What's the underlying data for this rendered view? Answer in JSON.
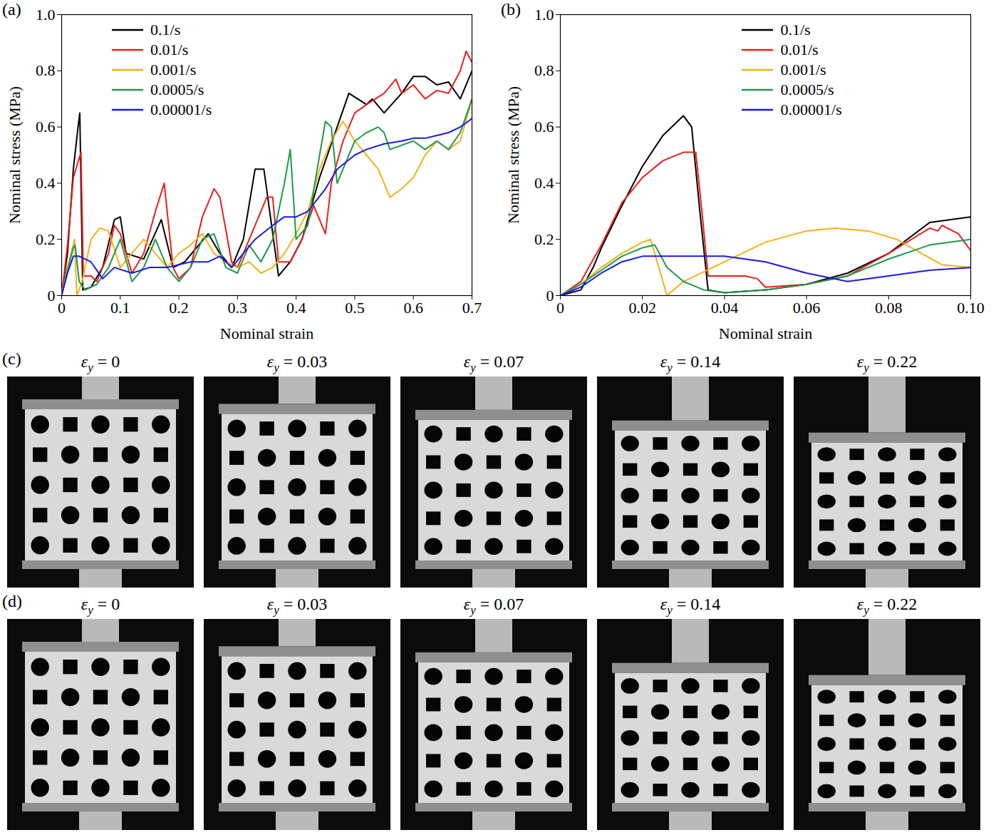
{
  "chart_data": [
    {
      "type": "line",
      "panel_label": "(a)",
      "x_label": "Nominal strain",
      "y_label": "Nominal stress (MPa)",
      "xlim": [
        0,
        0.7
      ],
      "xticks": [
        0,
        0.1,
        0.2,
        0.3,
        0.4,
        0.5,
        0.6,
        0.7
      ],
      "ylim": [
        0,
        1
      ],
      "yticks": [
        0,
        0.2,
        0.4,
        0.6,
        0.8,
        {
          "value": 1,
          "label": "1.0"
        }
      ],
      "legend": "top-left",
      "series": [
        {
          "name": "0.1/s",
          "color": "#000000",
          "x": [
            0,
            0.01,
            0.02,
            0.028,
            0.031,
            0.033,
            0.036,
            0.05,
            0.07,
            0.09,
            0.1,
            0.11,
            0.14,
            0.17,
            0.19,
            0.21,
            0.25,
            0.27,
            0.29,
            0.31,
            0.33,
            0.345,
            0.37,
            0.39,
            0.41,
            0.44,
            0.47,
            0.49,
            0.52,
            0.53,
            0.55,
            0.58,
            0.6,
            0.62,
            0.64,
            0.66,
            0.68,
            0.7
          ],
          "values": [
            0,
            0.15,
            0.45,
            0.6,
            0.65,
            0.4,
            0.02,
            0.03,
            0.1,
            0.27,
            0.28,
            0.15,
            0.13,
            0.27,
            0.1,
            0.12,
            0.22,
            0.15,
            0.1,
            0.2,
            0.45,
            0.45,
            0.07,
            0.12,
            0.2,
            0.42,
            0.6,
            0.72,
            0.68,
            0.7,
            0.65,
            0.72,
            0.78,
            0.78,
            0.75,
            0.76,
            0.7,
            0.8
          ]
        },
        {
          "name": "0.01/s",
          "color": "#e8201a",
          "x": [
            0,
            0.01,
            0.02,
            0.033,
            0.037,
            0.05,
            0.06,
            0.08,
            0.09,
            0.1,
            0.12,
            0.14,
            0.16,
            0.175,
            0.19,
            0.2,
            0.22,
            0.24,
            0.26,
            0.27,
            0.29,
            0.3,
            0.32,
            0.35,
            0.36,
            0.37,
            0.39,
            0.41,
            0.43,
            0.45,
            0.46,
            0.48,
            0.5,
            0.52,
            0.55,
            0.57,
            0.58,
            0.6,
            0.62,
            0.64,
            0.66,
            0.68,
            0.69,
            0.7
          ],
          "values": [
            0,
            0.18,
            0.42,
            0.51,
            0.07,
            0.07,
            0.05,
            0.15,
            0.25,
            0.22,
            0.08,
            0.15,
            0.3,
            0.4,
            0.1,
            0.06,
            0.1,
            0.28,
            0.38,
            0.35,
            0.12,
            0.1,
            0.2,
            0.35,
            0.35,
            0.12,
            0.12,
            0.2,
            0.32,
            0.22,
            0.4,
            0.55,
            0.65,
            0.68,
            0.72,
            0.77,
            0.72,
            0.75,
            0.7,
            0.73,
            0.72,
            0.8,
            0.87,
            0.83
          ]
        },
        {
          "name": "0.001/s",
          "color": "#f5b01a",
          "x": [
            0,
            0.01,
            0.022,
            0.026,
            0.035,
            0.05,
            0.065,
            0.08,
            0.1,
            0.12,
            0.14,
            0.16,
            0.18,
            0.2,
            0.22,
            0.24,
            0.26,
            0.28,
            0.3,
            0.32,
            0.34,
            0.36,
            0.38,
            0.4,
            0.42,
            0.44,
            0.46,
            0.48,
            0.5,
            0.52,
            0.54,
            0.56,
            0.58,
            0.6,
            0.62,
            0.64,
            0.66,
            0.68,
            0.7
          ],
          "values": [
            0,
            0.1,
            0.2,
            0,
            0.05,
            0.2,
            0.24,
            0.23,
            0.1,
            0.15,
            0.2,
            0.15,
            0.1,
            0.15,
            0.18,
            0.22,
            0.15,
            0.12,
            0.1,
            0.12,
            0.08,
            0.1,
            0.15,
            0.22,
            0.3,
            0.45,
            0.55,
            0.62,
            0.55,
            0.5,
            0.45,
            0.35,
            0.38,
            0.42,
            0.5,
            0.55,
            0.52,
            0.55,
            0.7
          ]
        },
        {
          "name": "0.0005/s",
          "color": "#1e9a4c",
          "x": [
            0,
            0.01,
            0.02,
            0.023,
            0.03,
            0.04,
            0.06,
            0.08,
            0.1,
            0.12,
            0.14,
            0.16,
            0.18,
            0.2,
            0.22,
            0.24,
            0.26,
            0.28,
            0.3,
            0.32,
            0.34,
            0.36,
            0.38,
            0.39,
            0.4,
            0.42,
            0.44,
            0.45,
            0.46,
            0.47,
            0.48,
            0.5,
            0.52,
            0.54,
            0.55,
            0.56,
            0.6,
            0.62,
            0.64,
            0.66,
            0.68,
            0.7
          ],
          "values": [
            0,
            0.09,
            0.17,
            0.18,
            0.05,
            0.02,
            0.04,
            0.1,
            0.2,
            0.05,
            0.1,
            0.2,
            0.1,
            0.05,
            0.1,
            0.2,
            0.22,
            0.1,
            0.08,
            0.18,
            0.12,
            0.2,
            0.4,
            0.52,
            0.2,
            0.25,
            0.5,
            0.62,
            0.6,
            0.4,
            0.45,
            0.55,
            0.58,
            0.6,
            0.58,
            0.52,
            0.55,
            0.52,
            0.55,
            0.52,
            0.58,
            0.7
          ]
        },
        {
          "name": "0.00001/s",
          "color": "#1a1ae6",
          "x": [
            0,
            0.01,
            0.02,
            0.03,
            0.05,
            0.07,
            0.09,
            0.12,
            0.15,
            0.18,
            0.22,
            0.25,
            0.27,
            0.29,
            0.31,
            0.33,
            0.36,
            0.38,
            0.4,
            0.42,
            0.45,
            0.47,
            0.5,
            0.52,
            0.55,
            0.58,
            0.6,
            0.62,
            0.64,
            0.66,
            0.68,
            0.7
          ],
          "values": [
            0,
            0.08,
            0.14,
            0.14,
            0.12,
            0.06,
            0.1,
            0.08,
            0.1,
            0.1,
            0.12,
            0.12,
            0.14,
            0.1,
            0.15,
            0.2,
            0.25,
            0.28,
            0.28,
            0.3,
            0.38,
            0.45,
            0.5,
            0.52,
            0.54,
            0.55,
            0.56,
            0.56,
            0.57,
            0.58,
            0.6,
            0.63
          ]
        }
      ]
    },
    {
      "type": "line",
      "panel_label": "(b)",
      "x_label": "Nominal strain",
      "y_label": "Nominal stress (MPa)",
      "xlim": [
        0,
        0.1
      ],
      "xticks": [
        0,
        0.02,
        0.04,
        0.06,
        0.08,
        {
          "value": 0.1,
          "label": "0.10"
        }
      ],
      "ylim": [
        0,
        1
      ],
      "yticks": [
        0,
        0.2,
        0.4,
        0.6,
        0.8,
        {
          "value": 1,
          "label": "1.0"
        }
      ],
      "legend": "top",
      "series": [
        {
          "name": "0.1/s",
          "color": "#000000",
          "x": [
            0,
            0.005,
            0.008,
            0.01,
            0.015,
            0.02,
            0.025,
            0.03,
            0.032,
            0.034,
            0.036,
            0.04,
            0.05,
            0.06,
            0.07,
            0.08,
            0.09,
            0.1
          ],
          "values": [
            0,
            0.02,
            0.1,
            0.17,
            0.32,
            0.46,
            0.57,
            0.64,
            0.6,
            0.3,
            0.02,
            0.01,
            0.02,
            0.04,
            0.08,
            0.15,
            0.26,
            0.28
          ]
        },
        {
          "name": "0.01/s",
          "color": "#e8201a",
          "x": [
            0,
            0.005,
            0.01,
            0.015,
            0.02,
            0.025,
            0.03,
            0.033,
            0.0345,
            0.036,
            0.045,
            0.048,
            0.05,
            0.06,
            0.07,
            0.08,
            0.09,
            0.092,
            0.093,
            0.097,
            0.1
          ],
          "values": [
            0,
            0.05,
            0.18,
            0.33,
            0.42,
            0.48,
            0.51,
            0.51,
            0.3,
            0.07,
            0.07,
            0.06,
            0.03,
            0.04,
            0.07,
            0.15,
            0.24,
            0.23,
            0.25,
            0.22,
            0.16
          ]
        },
        {
          "name": "0.001/s",
          "color": "#f5b01a",
          "x": [
            0,
            0.005,
            0.01,
            0.015,
            0.02,
            0.022,
            0.024,
            0.026,
            0.03,
            0.04,
            0.05,
            0.06,
            0.067,
            0.075,
            0.082,
            0.088,
            0.093,
            0.1
          ],
          "values": [
            0,
            0.04,
            0.1,
            0.15,
            0.19,
            0.2,
            0.1,
            0,
            0.05,
            0.12,
            0.19,
            0.23,
            0.24,
            0.23,
            0.2,
            0.15,
            0.11,
            0.1
          ]
        },
        {
          "name": "0.0005/s",
          "color": "#1e9a4c",
          "x": [
            0,
            0.005,
            0.01,
            0.015,
            0.02,
            0.023,
            0.026,
            0.03,
            0.035,
            0.04,
            0.05,
            0.06,
            0.07,
            0.08,
            0.09,
            0.1
          ],
          "values": [
            0,
            0.04,
            0.09,
            0.14,
            0.17,
            0.18,
            0.1,
            0.05,
            0.02,
            0.01,
            0.02,
            0.04,
            0.07,
            0.13,
            0.18,
            0.2
          ]
        },
        {
          "name": "0.00001/s",
          "color": "#1a1ae6",
          "x": [
            0,
            0.005,
            0.01,
            0.015,
            0.02,
            0.03,
            0.04,
            0.05,
            0.06,
            0.07,
            0.08,
            0.09,
            0.1
          ],
          "values": [
            0,
            0.03,
            0.08,
            0.12,
            0.14,
            0.14,
            0.14,
            0.12,
            0.08,
            0.05,
            0.07,
            0.09,
            0.1
          ]
        }
      ]
    }
  ],
  "photo_rows": [
    {
      "label": "(c)",
      "variable": "ε",
      "subscript": "y",
      "relation": "=",
      "strains": [
        0,
        0.03,
        0.07,
        0.14,
        0.22
      ]
    },
    {
      "label": "(d)",
      "variable": "ε",
      "subscript": "y",
      "relation": "=",
      "strains": [
        0,
        0.03,
        0.07,
        0.14,
        0.22
      ]
    }
  ]
}
